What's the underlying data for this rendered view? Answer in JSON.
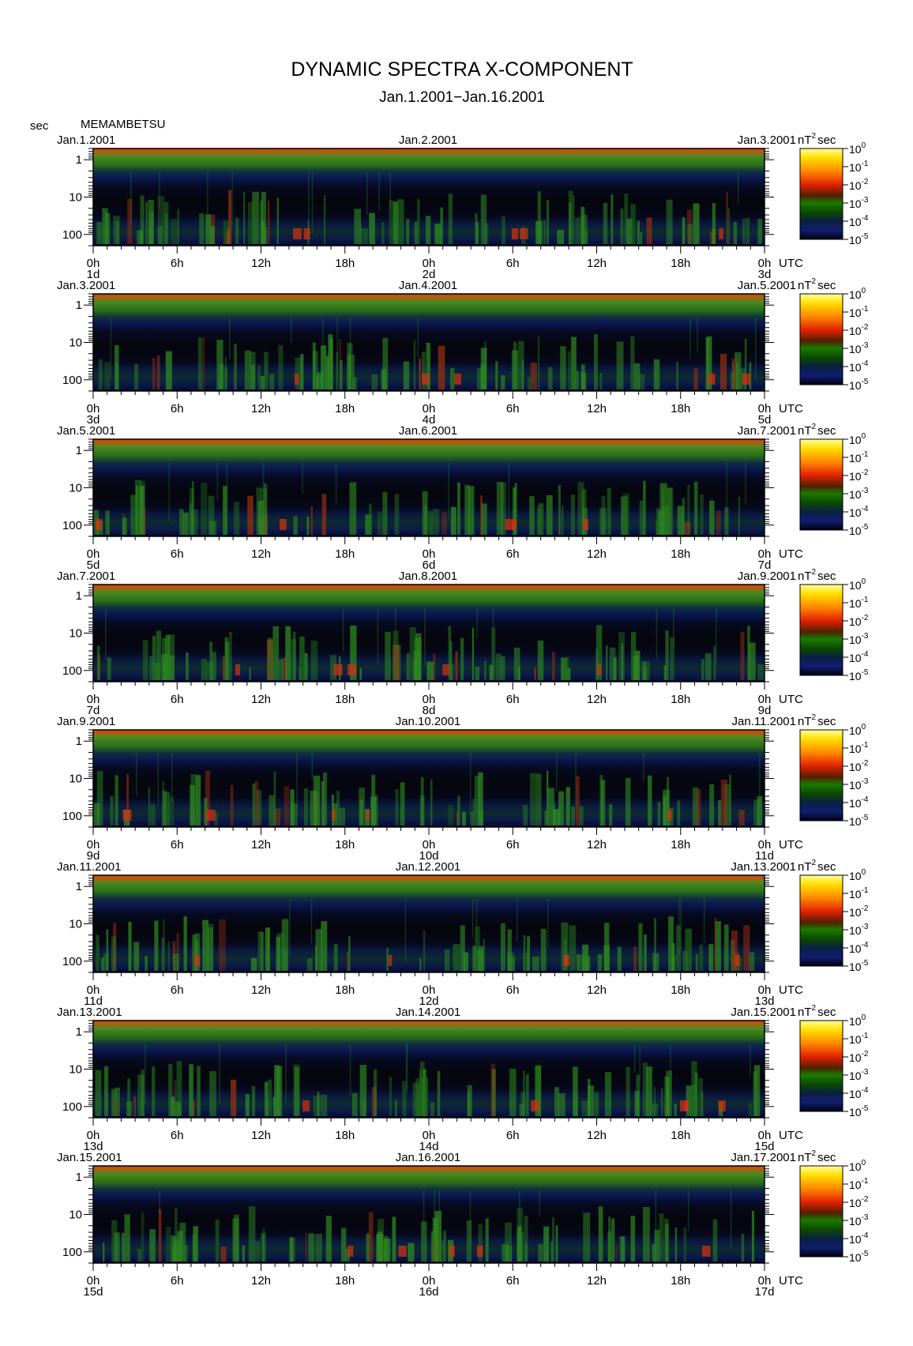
{
  "title": "DYNAMIC SPECTRA X-COMPONENT",
  "subtitle": "Jan.1.2001−Jan.16.2001",
  "y_unit_label": "sec",
  "station": "MEMAMBETSU",
  "colorbar_unit": "nT",
  "colorbar_unit_sup": "2",
  "colorbar_unit_suffix": "sec",
  "utc_label": "UTC",
  "chart_data": {
    "type": "heatmap",
    "y_axis": {
      "label": "sec",
      "ticks": [
        "1",
        "10",
        "100"
      ],
      "scale": "log",
      "inverted": true
    },
    "x_axis": {
      "ticks": [
        "0h",
        "6h",
        "12h",
        "18h",
        "0h",
        "6h",
        "12h",
        "18h",
        "0h"
      ],
      "unit": "UTC"
    },
    "colorbar": {
      "unit": "nT²sec",
      "ticks": [
        {
          "base": "10",
          "exp": "0"
        },
        {
          "base": "10",
          "exp": "-1"
        },
        {
          "base": "10",
          "exp": "-2"
        },
        {
          "base": "10",
          "exp": "-3"
        },
        {
          "base": "10",
          "exp": "-4"
        },
        {
          "base": "10",
          "exp": "-5"
        }
      ],
      "colors": [
        "#ffff60",
        "#ffd000",
        "#ff7a00",
        "#e01800",
        "#1e7a00",
        "#0c4a00",
        "#0a1f55",
        "#000010"
      ]
    },
    "panels": [
      {
        "date_left": "Jan.1.2001",
        "date_mid": "Jan.2.2001",
        "date_right": "Jan.3.2001",
        "day_left": "1d",
        "day_mid": "2d",
        "day_right": "3d"
      },
      {
        "date_left": "Jan.3.2001",
        "date_mid": "Jan.4.2001",
        "date_right": "Jan.5.2001",
        "day_left": "3d",
        "day_mid": "4d",
        "day_right": "5d"
      },
      {
        "date_left": "Jan.5.2001",
        "date_mid": "Jan.6.2001",
        "date_right": "Jan.7.2001",
        "day_left": "5d",
        "day_mid": "6d",
        "day_right": "7d"
      },
      {
        "date_left": "Jan.7.2001",
        "date_mid": "Jan.8.2001",
        "date_right": "Jan.9.2001",
        "day_left": "7d",
        "day_mid": "8d",
        "day_right": "9d"
      },
      {
        "date_left": "Jan.9.2001",
        "date_mid": "Jan.10.2001",
        "date_right": "Jan.11.2001",
        "day_left": "9d",
        "day_mid": "10d",
        "day_right": "11d"
      },
      {
        "date_left": "Jan.11.2001",
        "date_mid": "Jan.12.2001",
        "date_right": "Jan.13.2001",
        "day_left": "11d",
        "day_mid": "12d",
        "day_right": "13d"
      },
      {
        "date_left": "Jan.13.2001",
        "date_mid": "Jan.14.2001",
        "date_right": "Jan.15.2001",
        "day_left": "13d",
        "day_mid": "14d",
        "day_right": "15d"
      },
      {
        "date_left": "Jan.15.2001",
        "date_mid": "Jan.16.2001",
        "date_right": "Jan.17.2001",
        "day_left": "15d",
        "day_mid": "16d",
        "day_right": "17d"
      }
    ]
  }
}
